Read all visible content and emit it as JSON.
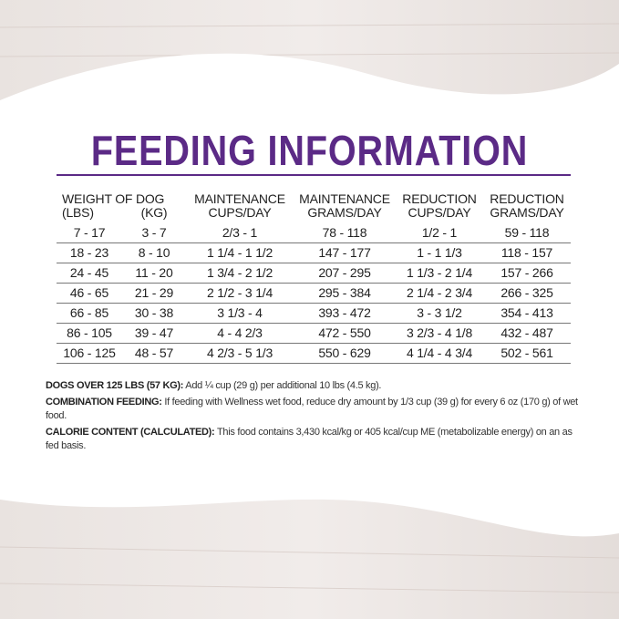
{
  "title": "FEEDING INFORMATION",
  "colors": {
    "accent": "#5b2a86"
  },
  "table": {
    "group_header": "WEIGHT OF DOG",
    "headers": [
      "(LBS)",
      "(KG)",
      [
        "MAINTENANCE",
        "CUPS/DAY"
      ],
      [
        "MAINTENANCE",
        "GRAMS/DAY"
      ],
      [
        "REDUCTION",
        "CUPS/DAY"
      ],
      [
        "REDUCTION",
        "GRAMS/DAY"
      ]
    ],
    "rows": [
      [
        "7 - 17",
        "3 - 7",
        "2/3 - 1",
        "78 - 118",
        "1/2 - 1",
        "59 - 118"
      ],
      [
        "18 - 23",
        "8 - 10",
        "1 1/4 - 1 1/2",
        "147 - 177",
        "1 - 1 1/3",
        "118 - 157"
      ],
      [
        "24 - 45",
        "11 - 20",
        "1 3/4 - 2 1/2",
        "207 - 295",
        "1 1/3 - 2 1/4",
        "157 - 266"
      ],
      [
        "46 - 65",
        "21 - 29",
        "2 1/2 - 3 1/4",
        "295 - 384",
        "2 1/4 - 2 3/4",
        "266 - 325"
      ],
      [
        "66 - 85",
        "30 - 38",
        "3 1/3 - 4",
        "393 - 472",
        "3 - 3 1/2",
        "354 - 413"
      ],
      [
        "86 - 105",
        "39 - 47",
        "4 - 4 2/3",
        "472 - 550",
        "3 2/3 - 4 1/8",
        "432 - 487"
      ],
      [
        "106 - 125",
        "48 - 57",
        "4 2/3 - 5 1/3",
        "550 - 629",
        "4 1/4 - 4 3/4",
        "502 - 561"
      ]
    ]
  },
  "notes": [
    {
      "label": "DOGS OVER 125 LBS (57 KG):",
      "text": " Add ¼ cup (29 g) per additional 10 lbs (4.5 kg)."
    },
    {
      "label": "COMBINATION FEEDING:",
      "text": " If feeding with Wellness wet food, reduce dry amount by 1/3 cup (39 g) for every 6 oz (170 g) of wet food."
    },
    {
      "label": "CALORIE CONTENT (CALCULATED):",
      "text": " This food contains 3,430 kcal/kg or 405 kcal/cup ME (metabolizable energy) on an as fed basis."
    }
  ]
}
